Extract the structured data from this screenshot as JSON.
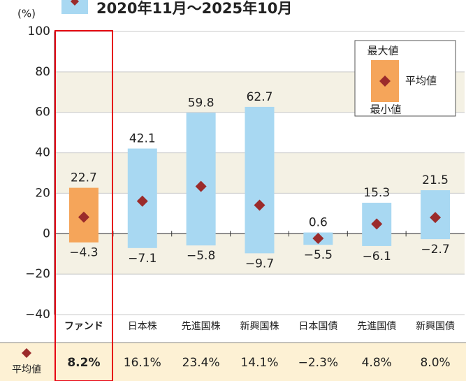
{
  "chart_data": {
    "type": "range_bar",
    "legend_title": "2020年11月～2025年10月",
    "y_label": "(%)",
    "categories": [
      "ファンド",
      "日本株",
      "先進国株",
      "新興国株",
      "日本国債",
      "先進国債",
      "新興国債"
    ],
    "bar_colors": [
      "#f5a55a",
      "#a8d8f2",
      "#a8d8f2",
      "#a8d8f2",
      "#a8d8f2",
      "#a8d8f2",
      "#a8d8f2"
    ],
    "marker_color": "#9b2b2b",
    "series": [
      {
        "name": "最大値",
        "values": [
          22.7,
          42.1,
          59.8,
          62.7,
          0.6,
          15.3,
          21.5
        ]
      },
      {
        "name": "最小値",
        "values": [
          -4.3,
          -7.1,
          -5.8,
          -9.7,
          -5.5,
          -6.1,
          -2.7
        ],
        "value_labels": [
          "−4.3",
          "−7.1",
          "−5.8",
          "−9.7",
          "−5.5",
          "−6.1",
          "−2.7"
        ]
      },
      {
        "name": "平均値",
        "values": [
          8.2,
          16.1,
          23.4,
          14.1,
          -2.3,
          4.8,
          8.0
        ],
        "value_labels": [
          "8.2%",
          "16.1%",
          "23.4%",
          "14.1%",
          "−2.3%",
          "4.8%",
          "8.0%"
        ]
      }
    ],
    "ylim": [
      -40,
      100
    ],
    "yticks": [
      100,
      80,
      60,
      40,
      20,
      0,
      {
        "value": -20,
        "label": "−20"
      },
      {
        "value": -40,
        "label": "−40"
      }
    ]
  }
}
